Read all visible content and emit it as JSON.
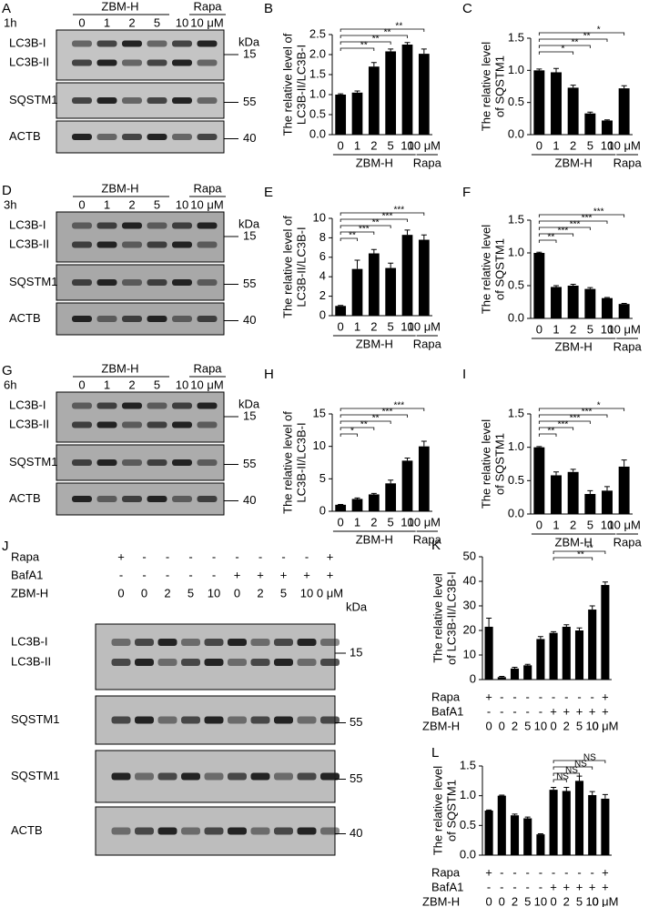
{
  "blots": [
    {
      "label": "A",
      "time": "1h",
      "treatment": "ZBM-H",
      "control": "Rapa",
      "lanes": [
        "0",
        "1",
        "2",
        "5",
        "10",
        "10 μM"
      ],
      "unit_label": "kDa",
      "rows": [
        {
          "names": [
            "LC3B-I",
            "LC3B-II"
          ],
          "marker": "15"
        },
        {
          "names": [
            "SQSTM1"
          ],
          "marker": "55"
        },
        {
          "names": [
            "ACTB"
          ],
          "marker": "40"
        }
      ]
    },
    {
      "label": "D",
      "time": "3h",
      "treatment": "ZBM-H",
      "control": "Rapa",
      "lanes": [
        "0",
        "1",
        "2",
        "5",
        "10",
        "10 μM"
      ],
      "unit_label": "kDa",
      "rows": [
        {
          "names": [
            "LC3B-I",
            "LC3B-II"
          ],
          "marker": "15"
        },
        {
          "names": [
            "SQSTM1"
          ],
          "marker": "55"
        },
        {
          "names": [
            "ACTB"
          ],
          "marker": "40"
        }
      ]
    },
    {
      "label": "G",
      "time": "6h",
      "treatment": "ZBM-H",
      "control": "Rapa",
      "lanes": [
        "0",
        "1",
        "2",
        "5",
        "10",
        "10 μM"
      ],
      "unit_label": "kDa",
      "rows": [
        {
          "names": [
            "LC3B-I",
            "LC3B-II"
          ],
          "marker": "15"
        },
        {
          "names": [
            "SQSTM1"
          ],
          "marker": "55"
        },
        {
          "names": [
            "ACTB"
          ],
          "marker": "40"
        }
      ]
    },
    {
      "label": "J",
      "unit_label": "kDa",
      "conditions": [
        {
          "label": "Rapa",
          "cells": [
            "+",
            "-",
            "-",
            "-",
            "-",
            "-",
            "-",
            "-",
            "-",
            "+"
          ]
        },
        {
          "label": "BafA1",
          "cells": [
            "-",
            "-",
            "-",
            "-",
            "-",
            "+",
            "+",
            "+",
            "+",
            "+"
          ]
        },
        {
          "label": "ZBM-H",
          "cells": [
            "0",
            "0",
            "2",
            "5",
            "10",
            "0",
            "2",
            "5",
            "10",
            "0 μM"
          ]
        }
      ],
      "rows": [
        {
          "names": [
            "LC3B-I",
            "LC3B-II"
          ],
          "marker": "15"
        },
        {
          "names": [
            "SQSTM1"
          ],
          "marker": "55"
        },
        {
          "names": [
            "SQSTM1"
          ],
          "marker": "55"
        },
        {
          "names": [
            "ACTB"
          ],
          "marker": "40"
        }
      ]
    }
  ],
  "chart_data": [
    {
      "type": "bar",
      "label": "B",
      "ylabel": [
        "The relative level of",
        "LC3B-II/LC3B-I"
      ],
      "color": "#000000",
      "categories": [
        "0",
        "1",
        "2",
        "5",
        "10",
        "10 μM"
      ],
      "values": [
        1.0,
        1.05,
        1.7,
        2.08,
        2.25,
        2.02
      ],
      "errors": [
        0.02,
        0.04,
        0.1,
        0.06,
        0.05,
        0.12
      ],
      "ylim": [
        0,
        2.5
      ],
      "yticks": [
        {
          "value": 0,
          "label": "0.0"
        },
        0.5,
        {
          "value": 1,
          "label": "1.0"
        },
        1.5,
        {
          "value": 2,
          "label": "2.0"
        },
        2.5
      ],
      "groups": [
        {
          "label": "ZBM-H",
          "from": 0,
          "to": 4
        },
        {
          "label": "Rapa",
          "from": 5,
          "to": 5
        }
      ],
      "brackets": [
        {
          "from": 0,
          "to": 2,
          "label": "**"
        },
        {
          "from": 0,
          "to": 3,
          "label": "**"
        },
        {
          "from": 0,
          "to": 4,
          "label": "**"
        },
        {
          "from": 0,
          "to": 5,
          "label": "**"
        }
      ]
    },
    {
      "type": "bar",
      "label": "C",
      "ylabel": [
        "The relative level",
        "of SQSTM1"
      ],
      "color": "#000000",
      "categories": [
        "0",
        "1",
        "2",
        "5",
        "10",
        "10 μM"
      ],
      "values": [
        1.0,
        0.97,
        0.73,
        0.33,
        0.22,
        0.72
      ],
      "errors": [
        0.02,
        0.06,
        0.04,
        0.02,
        0.01,
        0.04
      ],
      "ylim": [
        0,
        1.5
      ],
      "yticks": [
        {
          "value": 0,
          "label": "0.0"
        },
        0.5,
        {
          "value": 1,
          "label": "1.0"
        },
        1.5
      ],
      "groups": [
        {
          "label": "ZBM-H",
          "from": 0,
          "to": 4
        },
        {
          "label": "Rapa",
          "from": 5,
          "to": 5
        }
      ],
      "brackets": [
        {
          "from": 0,
          "to": 2,
          "label": "*"
        },
        {
          "from": 0,
          "to": 3,
          "label": "**"
        },
        {
          "from": 0,
          "to": 4,
          "label": "**"
        },
        {
          "from": 0,
          "to": 5,
          "label": "*"
        }
      ]
    },
    {
      "type": "bar",
      "label": "E",
      "ylabel": [
        "The relative level of",
        "LC3B-II/LC3B-I"
      ],
      "color": "#000000",
      "categories": [
        "0",
        "1",
        "2",
        "5",
        "10",
        "10 μM"
      ],
      "values": [
        1.0,
        4.8,
        6.4,
        4.9,
        8.3,
        7.8
      ],
      "errors": [
        0.05,
        0.9,
        0.4,
        0.5,
        0.5,
        0.5
      ],
      "ylim": [
        0,
        10
      ],
      "yticks": [
        0,
        2,
        4,
        6,
        8,
        10
      ],
      "groups": [
        {
          "label": "ZBM-H",
          "from": 0,
          "to": 4
        },
        {
          "label": "Rapa",
          "from": 5,
          "to": 5
        }
      ],
      "brackets": [
        {
          "from": 0,
          "to": 1,
          "label": "**"
        },
        {
          "from": 0,
          "to": 2,
          "label": "***"
        },
        {
          "from": 0,
          "to": 3,
          "label": "**"
        },
        {
          "from": 0,
          "to": 4,
          "label": "***"
        },
        {
          "from": 0,
          "to": 5,
          "label": "***"
        }
      ]
    },
    {
      "type": "bar",
      "label": "F",
      "ylabel": [
        "The relative level",
        "of SQSTM1"
      ],
      "color": "#000000",
      "categories": [
        "0",
        "1",
        "2",
        "5",
        "10",
        "10 μM"
      ],
      "values": [
        1.0,
        0.48,
        0.5,
        0.45,
        0.31,
        0.22
      ],
      "errors": [
        0.01,
        0.02,
        0.02,
        0.02,
        0.01,
        0.01
      ],
      "ylim": [
        0,
        1.5
      ],
      "yticks": [
        {
          "value": 0,
          "label": "0.0"
        },
        0.5,
        {
          "value": 1,
          "label": "1.0"
        },
        1.5
      ],
      "groups": [
        {
          "label": "ZBM-H",
          "from": 0,
          "to": 4
        },
        {
          "label": "Rapa",
          "from": 5,
          "to": 5
        }
      ],
      "brackets": [
        {
          "from": 0,
          "to": 1,
          "label": "**"
        },
        {
          "from": 0,
          "to": 2,
          "label": "***"
        },
        {
          "from": 0,
          "to": 3,
          "label": "***"
        },
        {
          "from": 0,
          "to": 4,
          "label": "***"
        },
        {
          "from": 0,
          "to": 5,
          "label": "***"
        }
      ]
    },
    {
      "type": "bar",
      "label": "H",
      "ylabel": [
        "The relative level of",
        "LC3B-II/LC3B-I"
      ],
      "color": "#000000",
      "categories": [
        "0",
        "1",
        "2",
        "5",
        "10",
        "10 μM"
      ],
      "values": [
        1.0,
        1.9,
        2.6,
        4.3,
        7.8,
        10.0
      ],
      "errors": [
        0.05,
        0.15,
        0.15,
        0.5,
        0.4,
        0.8
      ],
      "ylim": [
        0,
        15
      ],
      "yticks": [
        0,
        5,
        10,
        15
      ],
      "groups": [
        {
          "label": "ZBM-H",
          "from": 0,
          "to": 4
        },
        {
          "label": "Rapa",
          "from": 5,
          "to": 5
        }
      ],
      "brackets": [
        {
          "from": 0,
          "to": 1,
          "label": "*"
        },
        {
          "from": 0,
          "to": 2,
          "label": "**"
        },
        {
          "from": 0,
          "to": 3,
          "label": "**"
        },
        {
          "from": 0,
          "to": 4,
          "label": "***"
        },
        {
          "from": 0,
          "to": 5,
          "label": "***"
        }
      ]
    },
    {
      "type": "bar",
      "label": "I",
      "ylabel": [
        "The relative level",
        "of SQSTM1"
      ],
      "color": "#000000",
      "categories": [
        "0",
        "1",
        "2",
        "5",
        "10",
        "10 μM"
      ],
      "values": [
        1.0,
        0.58,
        0.63,
        0.3,
        0.35,
        0.71
      ],
      "errors": [
        0.01,
        0.05,
        0.04,
        0.05,
        0.06,
        0.1
      ],
      "ylim": [
        0,
        1.5
      ],
      "yticks": [
        {
          "value": 0,
          "label": "0.0"
        },
        0.5,
        {
          "value": 1,
          "label": "1.0"
        },
        1.5
      ],
      "groups": [
        {
          "label": "ZBM-H",
          "from": 0,
          "to": 4
        },
        {
          "label": "Rapa",
          "from": 5,
          "to": 5
        }
      ],
      "brackets": [
        {
          "from": 0,
          "to": 1,
          "label": "**"
        },
        {
          "from": 0,
          "to": 2,
          "label": "***"
        },
        {
          "from": 0,
          "to": 3,
          "label": "***"
        },
        {
          "from": 0,
          "to": 4,
          "label": "***"
        },
        {
          "from": 0,
          "to": 5,
          "label": "*"
        }
      ]
    },
    {
      "type": "bar",
      "label": "K",
      "ylabel": [
        "The relative level",
        "of LC3B-II/LC3B-I"
      ],
      "color": "#000000",
      "category_label": "ZBM-H",
      "categories": [
        "0",
        "0",
        "2",
        "5",
        "10",
        "0",
        "2",
        "5",
        "10",
        "0 μM"
      ],
      "conditions": [
        {
          "label": "Rapa",
          "cells": [
            "+",
            "-",
            "-",
            "-",
            "-",
            "-",
            "-",
            "-",
            "-",
            "+"
          ]
        },
        {
          "label": "BafA1",
          "cells": [
            "-",
            "-",
            "-",
            "-",
            "-",
            "+",
            "+",
            "+",
            "+",
            "+"
          ]
        }
      ],
      "values": [
        21.5,
        1.0,
        4.5,
        5.8,
        16.5,
        19.0,
        21.5,
        20.0,
        28.5,
        38.5
      ],
      "errors": [
        3.5,
        0.3,
        0.5,
        0.4,
        1.0,
        0.5,
        0.8,
        1.0,
        1.5,
        1.2
      ],
      "ylim": [
        0,
        50
      ],
      "yticks": [
        0,
        10,
        20,
        30,
        40,
        50
      ],
      "brackets": [
        {
          "from": 5,
          "to": 8,
          "label": "**"
        },
        {
          "from": 5,
          "to": 9,
          "label": "**"
        }
      ]
    },
    {
      "type": "bar",
      "label": "L",
      "ylabel": [
        "The relative level",
        "of SQSTM1"
      ],
      "color": "#000000",
      "category_label": "ZBM-H",
      "categories": [
        "0",
        "0",
        "2",
        "5",
        "10",
        "0",
        "2",
        "5",
        "10",
        "0 μM"
      ],
      "conditions": [
        {
          "label": "Rapa",
          "cells": [
            "+",
            "-",
            "-",
            "-",
            "-",
            "-",
            "-",
            "-",
            "-",
            "+"
          ]
        },
        {
          "label": "BafA1",
          "cells": [
            "-",
            "-",
            "-",
            "-",
            "-",
            "+",
            "+",
            "+",
            "+",
            "+"
          ]
        }
      ],
      "values": [
        0.75,
        1.0,
        0.67,
        0.62,
        0.35,
        1.1,
        1.08,
        1.25,
        1.01,
        0.95
      ],
      "errors": [
        0.01,
        0.01,
        0.02,
        0.02,
        0.01,
        0.04,
        0.06,
        0.08,
        0.06,
        0.07
      ],
      "ylim": [
        0,
        1.5
      ],
      "yticks": [
        {
          "value": 0,
          "label": "0.0"
        },
        0.5,
        {
          "value": 1,
          "label": "1.0"
        },
        1.5
      ],
      "brackets": [
        {
          "from": 5,
          "to": 6,
          "label": "NS"
        },
        {
          "from": 5,
          "to": 7,
          "label": "NS"
        },
        {
          "from": 5,
          "to": 8,
          "label": "NS"
        },
        {
          "from": 5,
          "to": 9,
          "label": "NS"
        }
      ]
    }
  ]
}
